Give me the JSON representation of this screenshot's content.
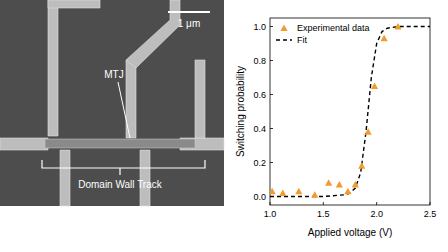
{
  "micrograph": {
    "scale_bar": "1 μm",
    "labels": [
      "MTJ",
      "Domain Wall Track"
    ]
  },
  "chart_data": {
    "type": "scatter",
    "x_label": "Applied voltage (V)",
    "y_label": "Switching probability",
    "xlim": [
      1.0,
      2.5
    ],
    "ylim": [
      -0.05,
      1.05
    ],
    "xticks": [
      {
        "value": 1.0,
        "label": "1.0"
      },
      {
        "value": 1.5,
        "label": "1.5"
      },
      {
        "value": 2.0,
        "label": "2.0"
      },
      {
        "value": 2.5,
        "label": "2.5"
      }
    ],
    "yticks": [
      {
        "value": 0.0,
        "label": "0.0"
      },
      {
        "value": 0.2,
        "label": "0.2"
      },
      {
        "value": 0.4,
        "label": "0.4"
      },
      {
        "value": 0.6,
        "label": "0.6"
      },
      {
        "value": 0.8,
        "label": "0.8"
      },
      {
        "value": 1.0,
        "label": "1.0"
      }
    ],
    "legend": "upper left",
    "grid": false,
    "series": [
      {
        "name": "Experimental data",
        "type": "scatter",
        "marker": "triangle",
        "color": "#f29b2e",
        "x": [
          1.02,
          1.12,
          1.27,
          1.42,
          1.55,
          1.65,
          1.73,
          1.8,
          1.86,
          1.92,
          1.98,
          2.07,
          2.2
        ],
        "values": [
          0.03,
          0.02,
          0.03,
          0.01,
          0.08,
          0.07,
          0.03,
          0.07,
          0.18,
          0.38,
          0.65,
          0.93,
          1.0
        ]
      },
      {
        "name": "Fit",
        "type": "line",
        "line_style": "dashed",
        "color": "#000000",
        "x": [
          1.0,
          1.5,
          1.7,
          1.75,
          1.8,
          1.85,
          1.9,
          1.95,
          2.0,
          2.05,
          2.1,
          2.2,
          2.5
        ],
        "values": [
          0.0,
          0.0,
          0.01,
          0.02,
          0.05,
          0.14,
          0.38,
          0.7,
          0.9,
          0.97,
          0.99,
          1.0,
          1.0
        ]
      }
    ]
  }
}
